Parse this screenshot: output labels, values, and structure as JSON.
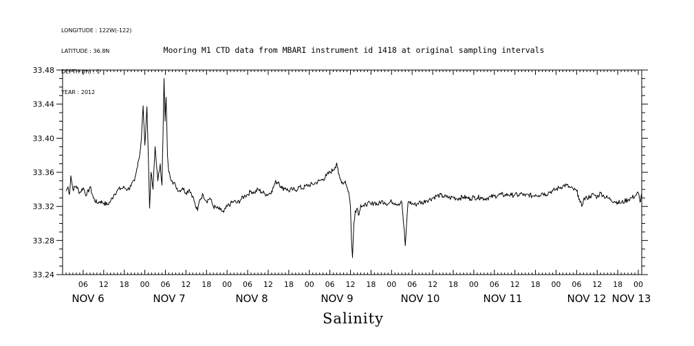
{
  "header": {
    "longitude": "LONGITUDE : 122W(-122)",
    "latitude": "LATITUDE : 36.8N",
    "depth": "DEPTH (m) : 1",
    "year": "YEAR : 2012"
  },
  "chart_data": {
    "type": "line",
    "title": "Mooring M1 CTD data from MBARI instrument id 1418 at original sampling intervals",
    "xlabel": "Salinity",
    "ylabel": "",
    "ylim": [
      33.24,
      33.48
    ],
    "yticks": [
      "33.24",
      "33.28",
      "33.32",
      "33.36",
      "33.40",
      "33.44",
      "33.48"
    ],
    "xlim_hours": [
      0,
      169
    ],
    "hour_tick_labels": [
      "06",
      "12",
      "18",
      "00",
      "06",
      "12",
      "18",
      "00",
      "06",
      "12",
      "18",
      "00",
      "06",
      "12",
      "18",
      "00",
      "06",
      "12",
      "18",
      "00",
      "06",
      "12",
      "18",
      "00",
      "06",
      "12",
      "18",
      "00"
    ],
    "day_labels": [
      "NOV  6",
      "NOV  7",
      "NOV  8",
      "NOV  9",
      "NOV 10",
      "NOV 11",
      "NOV 12",
      "NOV 13"
    ],
    "grid": false,
    "series": [
      {
        "x_unit": "hours since NOV 6 00:00",
        "points": [
          [
            1.0,
            33.338
          ],
          [
            1.6,
            33.343
          ],
          [
            2.0,
            33.334
          ],
          [
            2.4,
            33.356
          ],
          [
            3.0,
            33.34
          ],
          [
            4.0,
            33.344
          ],
          [
            5.0,
            33.336
          ],
          [
            6.0,
            33.342
          ],
          [
            7.0,
            33.333
          ],
          [
            8.0,
            33.343
          ],
          [
            9.0,
            33.33
          ],
          [
            10.0,
            33.324
          ],
          [
            11.0,
            33.326
          ],
          [
            12.0,
            33.324
          ],
          [
            13.0,
            33.322
          ],
          [
            14.0,
            33.326
          ],
          [
            15.0,
            33.334
          ],
          [
            16.0,
            33.339
          ],
          [
            17.0,
            33.341
          ],
          [
            18.0,
            33.342
          ],
          [
            19.0,
            33.34
          ],
          [
            20.0,
            33.344
          ],
          [
            21.0,
            33.35
          ],
          [
            21.5,
            33.36
          ],
          [
            22.0,
            33.372
          ],
          [
            22.5,
            33.38
          ],
          [
            23.0,
            33.4
          ],
          [
            23.5,
            33.438
          ],
          [
            24.0,
            33.392
          ],
          [
            24.6,
            33.437
          ],
          [
            25.0,
            33.38
          ],
          [
            25.4,
            33.318
          ],
          [
            25.8,
            33.36
          ],
          [
            26.4,
            33.34
          ],
          [
            27.0,
            33.39
          ],
          [
            27.8,
            33.35
          ],
          [
            28.5,
            33.37
          ],
          [
            29.0,
            33.345
          ],
          [
            29.3,
            33.402
          ],
          [
            29.6,
            33.47
          ],
          [
            29.9,
            33.42
          ],
          [
            30.2,
            33.448
          ],
          [
            30.6,
            33.38
          ],
          [
            31.0,
            33.36
          ],
          [
            32.0,
            33.35
          ],
          [
            33.0,
            33.344
          ],
          [
            34.0,
            33.338
          ],
          [
            35.0,
            33.342
          ],
          [
            36.0,
            33.336
          ],
          [
            37.0,
            33.34
          ],
          [
            38.0,
            33.332
          ],
          [
            38.8,
            33.32
          ],
          [
            39.4,
            33.315
          ],
          [
            40.0,
            33.328
          ],
          [
            41.0,
            33.334
          ],
          [
            42.0,
            33.326
          ],
          [
            43.0,
            33.33
          ],
          [
            44.0,
            33.32
          ],
          [
            45.0,
            33.318
          ],
          [
            46.0,
            33.316
          ],
          [
            47.0,
            33.313
          ],
          [
            48.0,
            33.32
          ],
          [
            49.0,
            33.323
          ],
          [
            50.0,
            33.326
          ],
          [
            51.0,
            33.324
          ],
          [
            52.0,
            33.328
          ],
          [
            53.0,
            33.332
          ],
          [
            54.0,
            33.334
          ],
          [
            55.0,
            33.338
          ],
          [
            56.0,
            33.336
          ],
          [
            57.0,
            33.34
          ],
          [
            58.0,
            33.337
          ],
          [
            59.0,
            33.335
          ],
          [
            60.0,
            33.334
          ],
          [
            61.0,
            33.338
          ],
          [
            61.5,
            33.342
          ],
          [
            62.0,
            33.348
          ],
          [
            63.0,
            33.349
          ],
          [
            64.0,
            33.341
          ],
          [
            65.0,
            33.342
          ],
          [
            66.0,
            33.338
          ],
          [
            67.0,
            33.34
          ],
          [
            68.0,
            33.339
          ],
          [
            69.0,
            33.343
          ],
          [
            70.0,
            33.341
          ],
          [
            71.0,
            33.344
          ],
          [
            72.0,
            33.345
          ],
          [
            73.0,
            33.346
          ],
          [
            74.0,
            33.348
          ],
          [
            75.0,
            33.35
          ],
          [
            76.0,
            33.352
          ],
          [
            77.0,
            33.356
          ],
          [
            78.0,
            33.36
          ],
          [
            79.0,
            33.363
          ],
          [
            79.5,
            33.366
          ],
          [
            80.0,
            33.371
          ],
          [
            80.5,
            33.358
          ],
          [
            81.0,
            33.352
          ],
          [
            82.0,
            33.347
          ],
          [
            82.5,
            33.35
          ],
          [
            83.0,
            33.342
          ],
          [
            83.5,
            33.337
          ],
          [
            84.0,
            33.32
          ],
          [
            84.3,
            33.28
          ],
          [
            84.6,
            33.26
          ],
          [
            85.0,
            33.3
          ],
          [
            85.4,
            33.315
          ],
          [
            86.0,
            33.318
          ],
          [
            86.5,
            33.31
          ],
          [
            87.0,
            33.322
          ],
          [
            88.0,
            33.32
          ],
          [
            89.0,
            33.324
          ],
          [
            90.0,
            33.322
          ],
          [
            91.0,
            33.325
          ],
          [
            92.0,
            33.322
          ],
          [
            93.0,
            33.326
          ],
          [
            94.0,
            33.325
          ],
          [
            95.0,
            33.323
          ],
          [
            96.0,
            33.326
          ],
          [
            97.0,
            33.324
          ],
          [
            98.0,
            33.323
          ],
          [
            99.0,
            33.325
          ],
          [
            99.5,
            33.3
          ],
          [
            100.0,
            33.274
          ],
          [
            100.4,
            33.3
          ],
          [
            100.8,
            33.324
          ],
          [
            101.0,
            33.326
          ],
          [
            102.0,
            33.323
          ],
          [
            103.0,
            33.322
          ],
          [
            104.0,
            33.325
          ],
          [
            105.0,
            33.324
          ],
          [
            106.0,
            33.327
          ],
          [
            107.0,
            33.328
          ],
          [
            108.0,
            33.33
          ],
          [
            109.0,
            33.332
          ],
          [
            110.0,
            33.333
          ],
          [
            111.0,
            33.332
          ],
          [
            112.0,
            33.331
          ],
          [
            113.0,
            33.33
          ],
          [
            114.0,
            33.331
          ],
          [
            115.0,
            33.329
          ],
          [
            116.0,
            33.33
          ],
          [
            117.0,
            33.331
          ],
          [
            118.0,
            33.33
          ],
          [
            119.0,
            33.329
          ],
          [
            120.0,
            33.331
          ],
          [
            121.0,
            33.33
          ],
          [
            122.0,
            33.331
          ],
          [
            123.0,
            33.329
          ],
          [
            124.0,
            33.33
          ],
          [
            125.0,
            33.331
          ],
          [
            126.0,
            33.332
          ],
          [
            127.0,
            33.333
          ],
          [
            128.0,
            33.334
          ],
          [
            129.0,
            33.333
          ],
          [
            130.0,
            33.334
          ],
          [
            131.0,
            33.333
          ],
          [
            132.0,
            33.334
          ],
          [
            133.0,
            33.333
          ],
          [
            134.0,
            33.335
          ],
          [
            135.0,
            33.332
          ],
          [
            136.0,
            33.334
          ],
          [
            137.0,
            33.332
          ],
          [
            138.0,
            33.334
          ],
          [
            139.0,
            33.333
          ],
          [
            140.0,
            33.336
          ],
          [
            141.0,
            33.334
          ],
          [
            142.0,
            33.337
          ],
          [
            143.0,
            33.338
          ],
          [
            144.0,
            33.34
          ],
          [
            145.0,
            33.342
          ],
          [
            146.0,
            33.344
          ],
          [
            147.0,
            33.345
          ],
          [
            148.0,
            33.342
          ],
          [
            149.0,
            33.34
          ],
          [
            150.0,
            33.338
          ],
          [
            150.5,
            33.333
          ],
          [
            151.0,
            33.325
          ],
          [
            151.5,
            33.32
          ],
          [
            152.0,
            33.328
          ],
          [
            153.0,
            33.33
          ],
          [
            154.0,
            33.332
          ],
          [
            155.0,
            33.334
          ],
          [
            156.0,
            33.331
          ],
          [
            157.0,
            33.336
          ],
          [
            158.0,
            33.332
          ],
          [
            159.0,
            33.33
          ],
          [
            160.0,
            33.328
          ],
          [
            161.0,
            33.326
          ],
          [
            162.0,
            33.325
          ],
          [
            163.0,
            33.324
          ],
          [
            164.0,
            33.326
          ],
          [
            165.0,
            33.328
          ],
          [
            166.0,
            33.33
          ],
          [
            167.0,
            33.332
          ],
          [
            167.5,
            33.334
          ],
          [
            168.0,
            33.336
          ],
          [
            168.5,
            33.325
          ],
          [
            169.0,
            33.335
          ]
        ]
      }
    ]
  }
}
